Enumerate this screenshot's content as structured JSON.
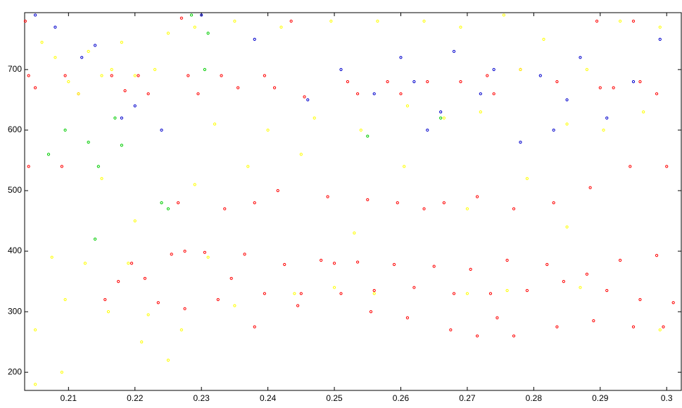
{
  "chart_data": {
    "type": "scatter",
    "xlim": [
      0.2034,
      0.3022
    ],
    "ylim": [
      170,
      794
    ],
    "xticks": [
      0.21,
      0.22,
      0.23,
      0.24,
      0.25,
      0.26,
      0.27,
      0.28,
      0.29,
      0.3
    ],
    "yticks": [
      200,
      300,
      400,
      500,
      600,
      700
    ],
    "series": [
      {
        "color": "#ff0000",
        "x": [
          0.2155,
          0.2175,
          0.2195,
          0.2215,
          0.2235,
          0.2255,
          0.2275,
          0.2305,
          0.2325,
          0.2345,
          0.2365,
          0.2395,
          0.2425,
          0.245,
          0.248,
          0.251,
          0.2535,
          0.256,
          0.259,
          0.262,
          0.265,
          0.268,
          0.2705,
          0.2735,
          0.276,
          0.279,
          0.282,
          0.2845,
          0.288,
          0.291,
          0.293,
          0.296,
          0.2985,
          0.301,
          0.2035,
          0.204,
          0.205,
          0.2095,
          0.2115,
          0.2165,
          0.2185,
          0.2205,
          0.222,
          0.227,
          0.228,
          0.2295,
          0.233,
          0.2355,
          0.2395,
          0.241,
          0.2435,
          0.2455,
          0.252,
          0.2535,
          0.258,
          0.26,
          0.264,
          0.269,
          0.273,
          0.274,
          0.278,
          0.2835,
          0.2895,
          0.29,
          0.292,
          0.295,
          0.296,
          0.2985,
          0.2265,
          0.2275,
          0.2335,
          0.238,
          0.238,
          0.2415,
          0.2445,
          0.249,
          0.25,
          0.255,
          0.2555,
          0.2595,
          0.261,
          0.2635,
          0.2665,
          0.2675,
          0.2715,
          0.2715,
          0.2745,
          0.277,
          0.277,
          0.283,
          0.2835,
          0.2885,
          0.289,
          0.2945,
          0.295,
          0.3,
          0.2995,
          0.209,
          0.204
        ],
        "values": [
          320,
          350,
          380,
          355,
          315,
          395,
          305,
          398,
          320,
          355,
          395,
          330,
          378,
          330,
          385,
          330,
          382,
          335,
          378,
          340,
          375,
          330,
          370,
          330,
          385,
          335,
          378,
          350,
          362,
          335,
          385,
          320,
          393,
          315,
          780,
          690,
          670,
          690,
          660,
          690,
          665,
          690,
          660,
          785,
          690,
          660,
          690,
          670,
          690,
          670,
          780,
          655,
          680,
          660,
          680,
          660,
          680,
          680,
          690,
          660,
          700,
          680,
          780,
          670,
          670,
          780,
          680,
          660,
          480,
          400,
          470,
          480,
          275,
          500,
          310,
          490,
          380,
          485,
          300,
          480,
          290,
          470,
          480,
          270,
          490,
          260,
          290,
          470,
          260,
          480,
          275,
          505,
          285,
          540,
          275,
          540,
          275,
          540,
          540
        ]
      },
      {
        "color": "#ffff00",
        "x": [
          0.206,
          0.208,
          0.21,
          0.2115,
          0.213,
          0.215,
          0.2165,
          0.218,
          0.22,
          0.223,
          0.225,
          0.229,
          0.232,
          0.235,
          0.24,
          0.242,
          0.247,
          0.2495,
          0.254,
          0.2565,
          0.261,
          0.2635,
          0.2665,
          0.269,
          0.272,
          0.2755,
          0.278,
          0.2815,
          0.285,
          0.288,
          0.2905,
          0.293,
          0.2965,
          0.299,
          0.205,
          0.2075,
          0.2095,
          0.2125,
          0.216,
          0.219,
          0.222,
          0.227,
          0.231,
          0.235,
          0.244,
          0.25,
          0.256,
          0.27,
          0.276,
          0.287,
          0.299,
          0.215,
          0.22,
          0.229,
          0.237,
          0.245,
          0.253,
          0.2605,
          0.27,
          0.279,
          0.285,
          0.205,
          0.209,
          0.221,
          0.225
        ],
        "values": [
          745,
          720,
          680,
          660,
          730,
          690,
          700,
          745,
          690,
          700,
          760,
          770,
          610,
          780,
          600,
          770,
          620,
          780,
          600,
          780,
          640,
          780,
          620,
          770,
          630,
          790,
          700,
          750,
          610,
          700,
          600,
          780,
          630,
          770,
          270,
          390,
          320,
          380,
          300,
          380,
          295,
          270,
          390,
          310,
          330,
          340,
          330,
          330,
          335,
          340,
          270,
          520,
          450,
          510,
          540,
          560,
          430,
          540,
          470,
          520,
          440,
          180,
          200,
          250,
          220
        ]
      },
      {
        "color": "#0000cc",
        "x": [
          0.205,
          0.208,
          0.212,
          0.214,
          0.218,
          0.22,
          0.224,
          0.23,
          0.238,
          0.246,
          0.251,
          0.256,
          0.26,
          0.262,
          0.266,
          0.268,
          0.272,
          0.274,
          0.278,
          0.281,
          0.285,
          0.287,
          0.291,
          0.295,
          0.299,
          0.283,
          0.264
        ],
        "values": [
          790,
          770,
          720,
          740,
          620,
          640,
          600,
          790,
          750,
          650,
          700,
          660,
          720,
          680,
          630,
          730,
          660,
          700,
          580,
          690,
          650,
          720,
          620,
          680,
          750,
          600,
          600
        ]
      },
      {
        "color": "#00cc00",
        "x": [
          0.207,
          0.2095,
          0.213,
          0.2145,
          0.217,
          0.218,
          0.224,
          0.225,
          0.231,
          0.2285,
          0.255,
          0.266,
          0.214,
          0.2305
        ],
        "values": [
          560,
          600,
          580,
          540,
          620,
          575,
          480,
          470,
          760,
          790,
          590,
          620,
          420,
          700
        ]
      }
    ]
  }
}
